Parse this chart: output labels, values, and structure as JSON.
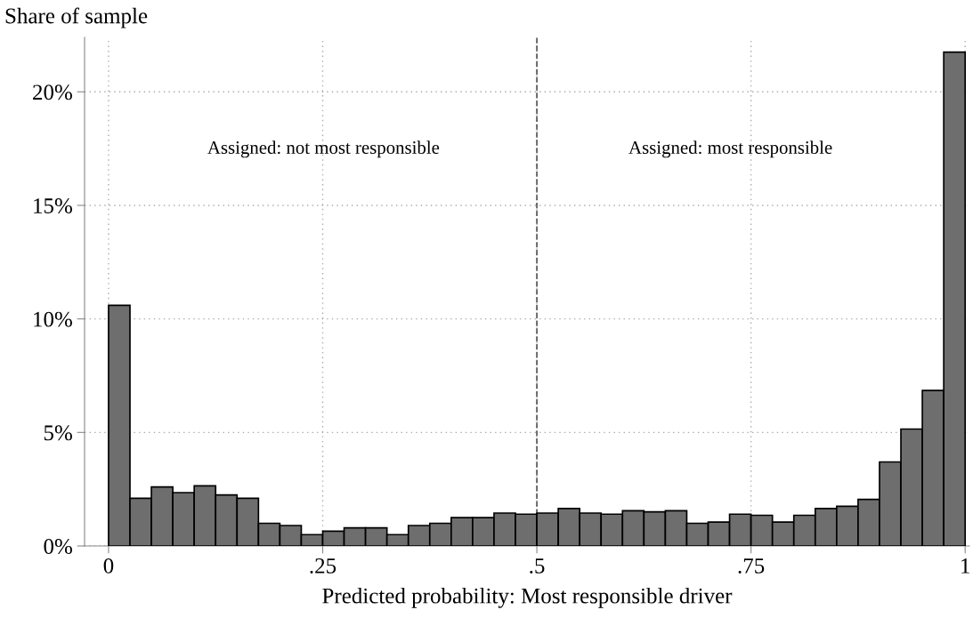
{
  "chart_data": {
    "type": "histogram",
    "ylabel": "Share of sample",
    "xlabel": "Predicted probability: Most responsible driver",
    "bins": [
      0,
      0.025,
      0.05,
      0.075,
      0.1,
      0.125,
      0.15,
      0.175,
      0.2,
      0.225,
      0.25,
      0.275,
      0.3,
      0.325,
      0.35,
      0.375,
      0.4,
      0.425,
      0.45,
      0.475,
      0.5,
      0.525,
      0.55,
      0.575,
      0.6,
      0.625,
      0.65,
      0.675,
      0.7,
      0.725,
      0.75,
      0.775,
      0.8,
      0.825,
      0.85,
      0.875,
      0.9,
      0.925,
      0.95,
      0.975,
      1
    ],
    "values": [
      10.6,
      2.1,
      2.6,
      2.35,
      2.65,
      2.25,
      2.1,
      1.0,
      0.9,
      0.5,
      0.65,
      0.8,
      0.8,
      0.5,
      0.9,
      1.0,
      1.25,
      1.25,
      1.45,
      1.4,
      1.45,
      1.65,
      1.45,
      1.4,
      1.55,
      1.5,
      1.55,
      1.0,
      1.05,
      1.4,
      1.35,
      1.05,
      1.35,
      1.65,
      1.75,
      2.05,
      3.7,
      5.15,
      6.85,
      21.75
    ],
    "color": "#6e6e6e",
    "xlim": [
      -0.028,
      1.005
    ],
    "ylim": [
      0,
      22.4
    ],
    "xticks": [
      0,
      {
        "value": 0.25,
        "label": ".25"
      },
      {
        "value": 0.5,
        "label": ".5"
      },
      {
        "value": 0.75,
        "label": ".75"
      },
      1
    ],
    "yticks": [
      {
        "value": 0,
        "label": "0%"
      },
      {
        "value": 5,
        "label": "5%"
      },
      {
        "value": 10,
        "label": "10%"
      },
      {
        "value": 15,
        "label": "15%"
      },
      {
        "value": 20,
        "label": "20%"
      }
    ],
    "grid": true,
    "ref_lines": [
      {
        "axis": "x",
        "value": 0.5,
        "line_style": "dashed",
        "color": "#555555"
      }
    ],
    "annotations": [
      "Assigned: not most responsible",
      "Assigned: most responsible"
    ]
  }
}
